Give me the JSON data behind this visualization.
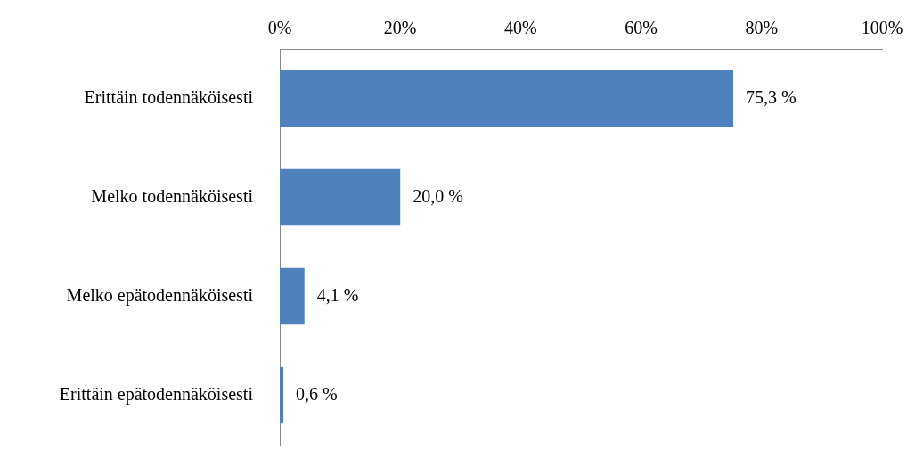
{
  "chart_data": {
    "type": "bar",
    "orientation": "horizontal",
    "categories": [
      "Erittäin todennäköisesti",
      "Melko todennäköisesti",
      "Melko epätodennäköisesti",
      "Erittäin epätodennäköisesti"
    ],
    "values": [
      75.3,
      20.0,
      4.1,
      0.6
    ],
    "value_labels": [
      "75,3 %",
      "20,0 %",
      "4,1 %",
      "0,6 %"
    ],
    "color": "#4f81bd",
    "xlim": [
      0,
      100
    ],
    "xticks": [
      {
        "value": 0,
        "label": "0%"
      },
      {
        "value": 20,
        "label": "20%"
      },
      {
        "value": 40,
        "label": "40%"
      },
      {
        "value": 60,
        "label": "60%"
      },
      {
        "value": 80,
        "label": "80%"
      },
      {
        "value": 100,
        "label": "100%"
      }
    ],
    "grid": false,
    "legend": false
  }
}
